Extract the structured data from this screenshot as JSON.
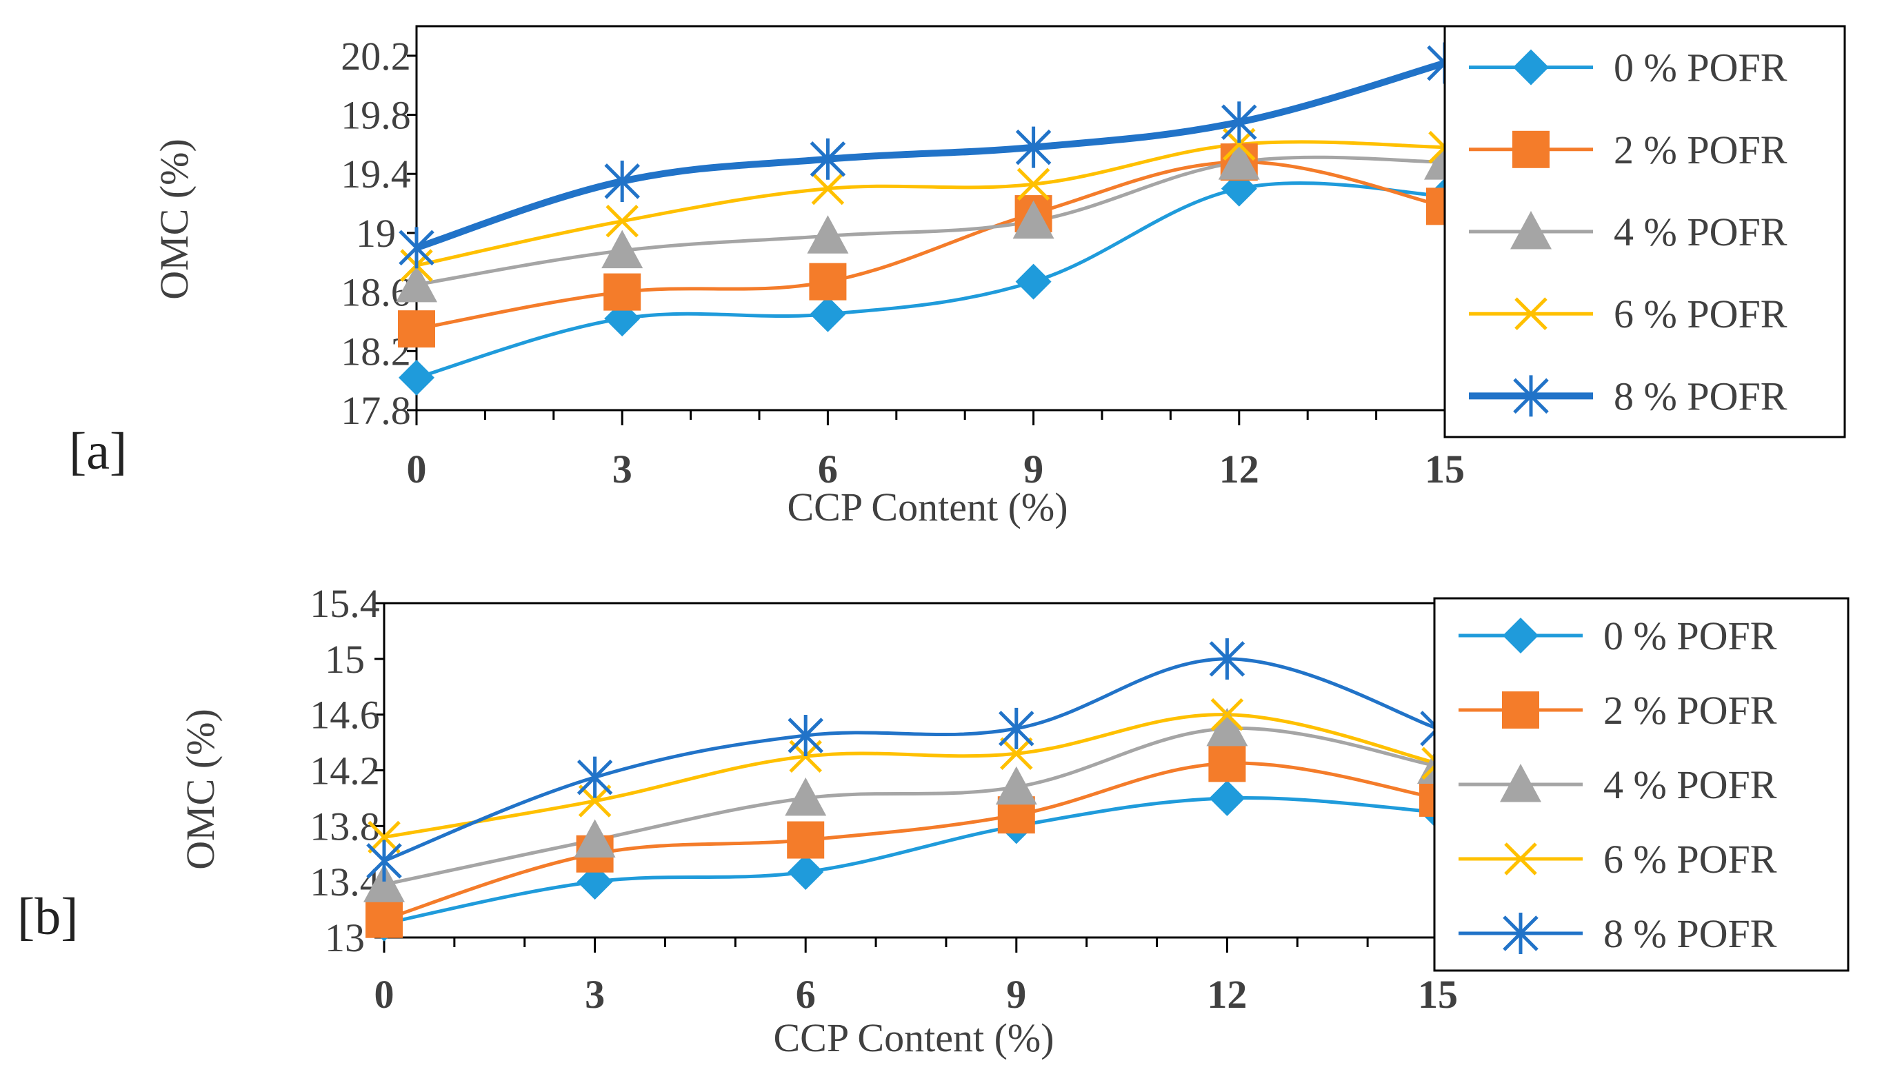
{
  "chart_data": [
    {
      "type": "line",
      "panel_label": "[a]",
      "xlabel": "CCP Content (%)",
      "ylabel": "OMC (%)",
      "x": [
        0,
        3,
        6,
        9,
        12,
        15
      ],
      "x_tick_labels": [
        "0",
        "3",
        "6",
        "9",
        "12",
        "15"
      ],
      "ylim": [
        17.8,
        20.4
      ],
      "y_ticks": [
        17.8,
        18.2,
        18.6,
        19,
        19.4,
        19.8,
        20.2
      ],
      "y_tick_labels": [
        "17.8",
        "18.2",
        "18.6",
        "19",
        "19.4",
        "19.8",
        "20.2"
      ],
      "grid": false,
      "legend_position": "right",
      "series": [
        {
          "name": "0 % POFR",
          "color": "#1F9BDB",
          "marker": "diamond",
          "values": [
            18.02,
            18.42,
            18.45,
            18.67,
            19.3,
            19.25
          ]
        },
        {
          "name": "2 % POFR",
          "color": "#F47C2A",
          "marker": "square",
          "values": [
            18.35,
            18.6,
            18.67,
            19.13,
            19.48,
            19.18
          ]
        },
        {
          "name": "4 % POFR",
          "color": "#A5A5A5",
          "marker": "triangle",
          "values": [
            18.65,
            18.88,
            18.98,
            19.08,
            19.48,
            19.48
          ]
        },
        {
          "name": "6 % POFR",
          "color": "#FFC000",
          "marker": "x",
          "values": [
            18.78,
            19.08,
            19.3,
            19.33,
            19.6,
            19.58
          ]
        },
        {
          "name": "8 % POFR",
          "color": "#2173C8",
          "marker": "star",
          "bold": true,
          "values": [
            18.9,
            19.35,
            19.5,
            19.58,
            19.75,
            20.15
          ]
        }
      ]
    },
    {
      "type": "line",
      "panel_label": "[b]",
      "xlabel": "CCP Content (%)",
      "ylabel": "OMC (%)",
      "x": [
        0,
        3,
        6,
        9,
        12,
        15
      ],
      "x_tick_labels": [
        "0",
        "3",
        "6",
        "9",
        "12",
        "15"
      ],
      "ylim": [
        13,
        15.4
      ],
      "y_ticks": [
        13,
        13.4,
        13.8,
        14.2,
        14.6,
        15,
        15.4
      ],
      "y_tick_labels": [
        "13",
        "13.4",
        "13.8",
        "14.2",
        "14.6",
        "15",
        "15.4"
      ],
      "grid": false,
      "legend_position": "right",
      "series": [
        {
          "name": "0 % POFR",
          "color": "#1F9BDB",
          "marker": "diamond",
          "values": [
            13.1,
            13.4,
            13.47,
            13.8,
            14.0,
            13.9
          ]
        },
        {
          "name": "2 % POFR",
          "color": "#F47C2A",
          "marker": "square",
          "values": [
            13.13,
            13.6,
            13.7,
            13.88,
            14.25,
            14.0
          ]
        },
        {
          "name": "4 % POFR",
          "color": "#A5A5A5",
          "marker": "triangle",
          "values": [
            13.38,
            13.7,
            14.0,
            14.08,
            14.5,
            14.23
          ]
        },
        {
          "name": "6 % POFR",
          "color": "#FFC000",
          "marker": "x",
          "values": [
            13.72,
            13.98,
            14.3,
            14.32,
            14.6,
            14.25
          ]
        },
        {
          "name": "8 % POFR",
          "color": "#2173C8",
          "marker": "star",
          "values": [
            13.55,
            14.15,
            14.45,
            14.5,
            15.0,
            14.5
          ]
        }
      ]
    }
  ]
}
